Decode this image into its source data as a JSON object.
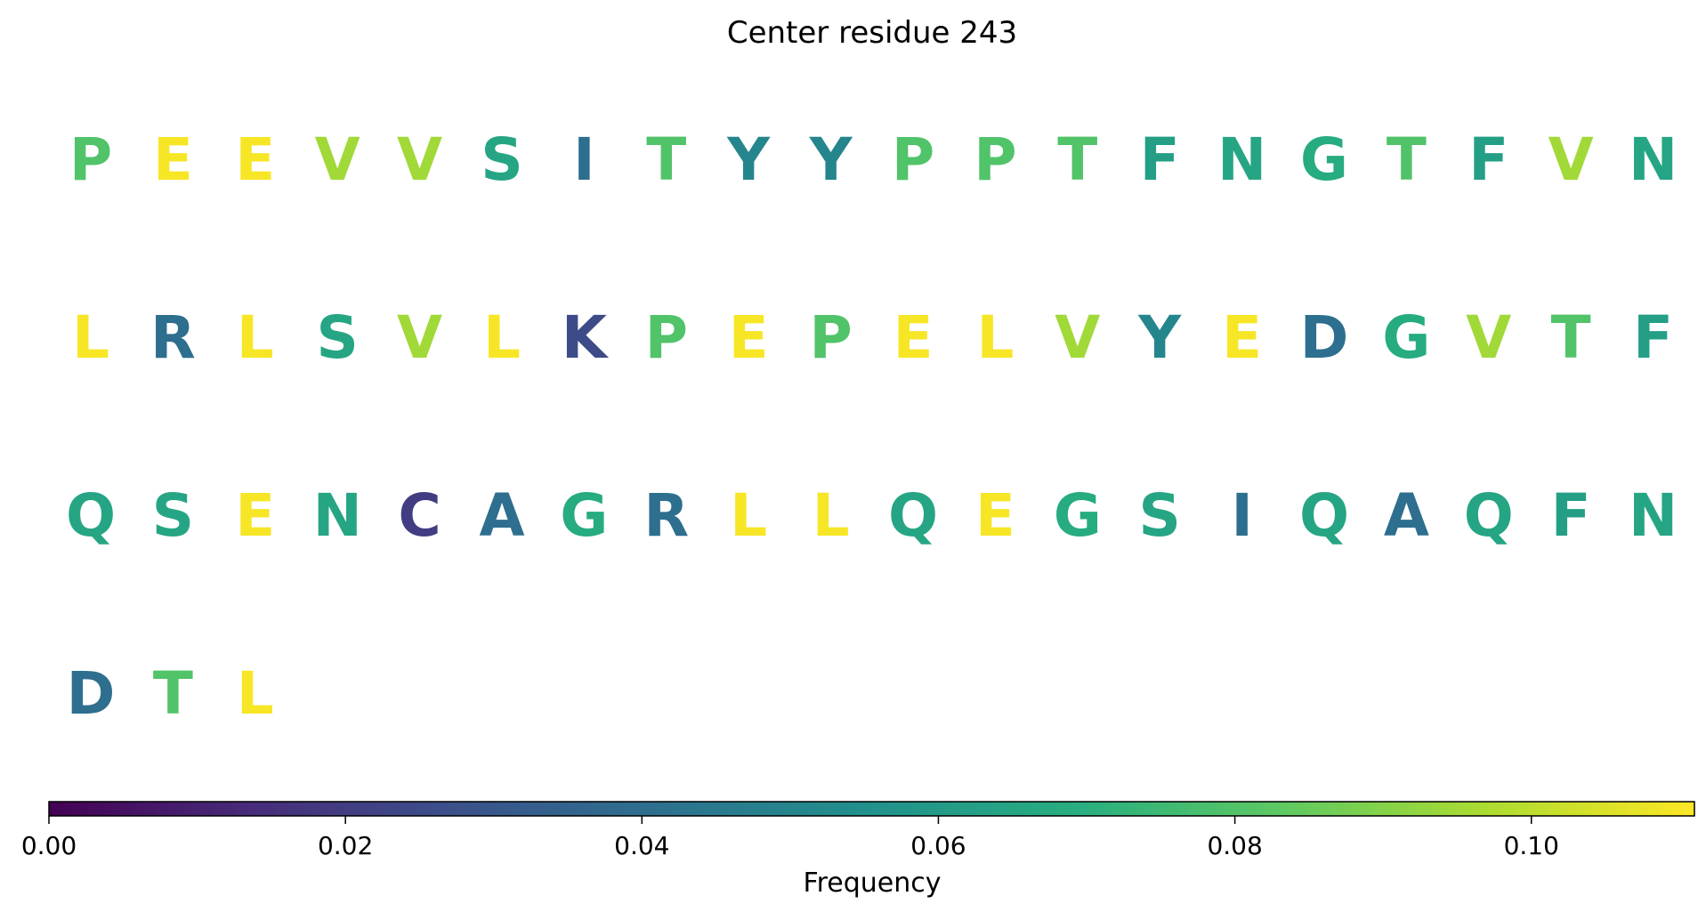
{
  "chart_data": {
    "type": "heatmap",
    "title": "Center residue 243",
    "rows": [
      {
        "residues": [
          "P",
          "E",
          "E",
          "V",
          "V",
          "S",
          "I",
          "T",
          "Y",
          "Y",
          "P",
          "P",
          "T",
          "F",
          "N",
          "G",
          "T",
          "F",
          "V",
          "N"
        ],
        "frequencies": [
          0.08,
          0.11,
          0.11,
          0.095,
          0.095,
          0.065,
          0.04,
          0.08,
          0.05,
          0.05,
          0.08,
          0.08,
          0.08,
          0.062,
          0.065,
          0.068,
          0.08,
          0.062,
          0.095,
          0.065
        ]
      },
      {
        "residues": [
          "L",
          "R",
          "L",
          "S",
          "V",
          "L",
          "K",
          "P",
          "E",
          "P",
          "E",
          "L",
          "V",
          "Y",
          "E",
          "D",
          "G",
          "V",
          "T",
          "F"
        ],
        "frequencies": [
          0.11,
          0.04,
          0.11,
          0.065,
          0.095,
          0.11,
          0.025,
          0.08,
          0.11,
          0.08,
          0.11,
          0.11,
          0.095,
          0.05,
          0.11,
          0.04,
          0.068,
          0.095,
          0.08,
          0.062
        ]
      },
      {
        "residues": [
          "Q",
          "S",
          "E",
          "N",
          "C",
          "A",
          "G",
          "R",
          "L",
          "L",
          "Q",
          "E",
          "G",
          "S",
          "I",
          "Q",
          "A",
          "Q",
          "F",
          "N"
        ],
        "frequencies": [
          0.065,
          0.065,
          0.11,
          0.065,
          0.02,
          0.04,
          0.068,
          0.04,
          0.11,
          0.11,
          0.065,
          0.11,
          0.068,
          0.065,
          0.04,
          0.065,
          0.04,
          0.065,
          0.062,
          0.065
        ]
      },
      {
        "residues": [
          "D",
          "T",
          "L"
        ],
        "frequencies": [
          0.04,
          0.08,
          0.11
        ]
      }
    ],
    "colorbar": {
      "label": "Frequency",
      "colormap": "viridis",
      "range": [
        0,
        0.111
      ],
      "ticks": [
        0.0,
        0.02,
        0.04,
        0.06,
        0.08,
        0.1
      ],
      "tick_labels": [
        "0.00",
        "0.02",
        "0.04",
        "0.06",
        "0.08",
        "0.10"
      ],
      "orientation": "horizontal",
      "placement": "bottom"
    }
  }
}
